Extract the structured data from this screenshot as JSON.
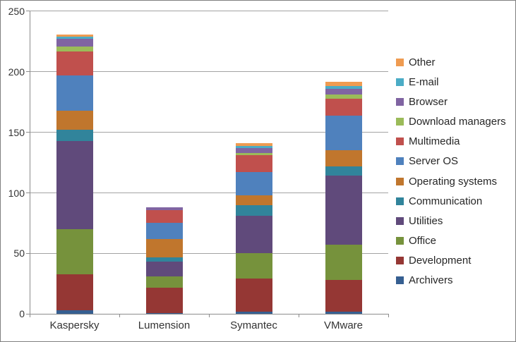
{
  "window": {
    "background_color": "#FFFFFF",
    "border_color": "#808080"
  },
  "chart_data": {
    "type": "bar",
    "stacked": true,
    "title": "",
    "xlabel": "",
    "ylabel": "",
    "categories": [
      "Kaspersky",
      "Lumension",
      "Symantec",
      "VMware"
    ],
    "series": [
      {
        "name": "Archivers",
        "color": "#365F91",
        "values": [
          3,
          1,
          2,
          2
        ]
      },
      {
        "name": "Development",
        "color": "#953734",
        "values": [
          30,
          21,
          27,
          26
        ]
      },
      {
        "name": "Office",
        "color": "#76923C",
        "values": [
          37,
          9,
          21,
          29
        ]
      },
      {
        "name": "Utilities",
        "color": "#604A7B",
        "values": [
          73,
          12,
          31,
          57
        ]
      },
      {
        "name": "Communication",
        "color": "#31849B",
        "values": [
          9,
          4,
          9,
          8
        ]
      },
      {
        "name": "Operating systems",
        "color": "#C0762D",
        "values": [
          16,
          15,
          8,
          13
        ]
      },
      {
        "name": "Server OS",
        "color": "#4F81BD",
        "values": [
          29,
          13,
          19,
          29
        ]
      },
      {
        "name": "Multimedia",
        "color": "#C0504D",
        "values": [
          20,
          11,
          14,
          14
        ]
      },
      {
        "name": "Download managers",
        "color": "#9BBB59",
        "values": [
          4,
          0,
          2,
          3
        ]
      },
      {
        "name": "Browser",
        "color": "#8064A2",
        "values": [
          6,
          2,
          4,
          5
        ]
      },
      {
        "name": "E-mail",
        "color": "#4BACC6",
        "values": [
          2,
          0,
          2,
          2
        ]
      },
      {
        "name": "Other",
        "color": "#EF9B51",
        "values": [
          2,
          0,
          2,
          4
        ]
      }
    ],
    "totals": [
      231,
      88,
      141,
      192
    ],
    "ylim": [
      0,
      250
    ],
    "ytick_interval": 50,
    "ytick_labels": [
      "0",
      "50",
      "100",
      "150",
      "200",
      "250"
    ],
    "grid": "horizontal",
    "legend_position": "right",
    "legend_order_top_to_bottom": [
      "Other",
      "E-mail",
      "Browser",
      "Download managers",
      "Multimedia",
      "Server OS",
      "Operating systems",
      "Communication",
      "Utilities",
      "Office",
      "Development",
      "Archivers"
    ],
    "axis_color": "#8C8C8C",
    "grid_color": "#A3A3A3",
    "tick_label_color": "#333333",
    "legend_text_color": "#262626"
  }
}
